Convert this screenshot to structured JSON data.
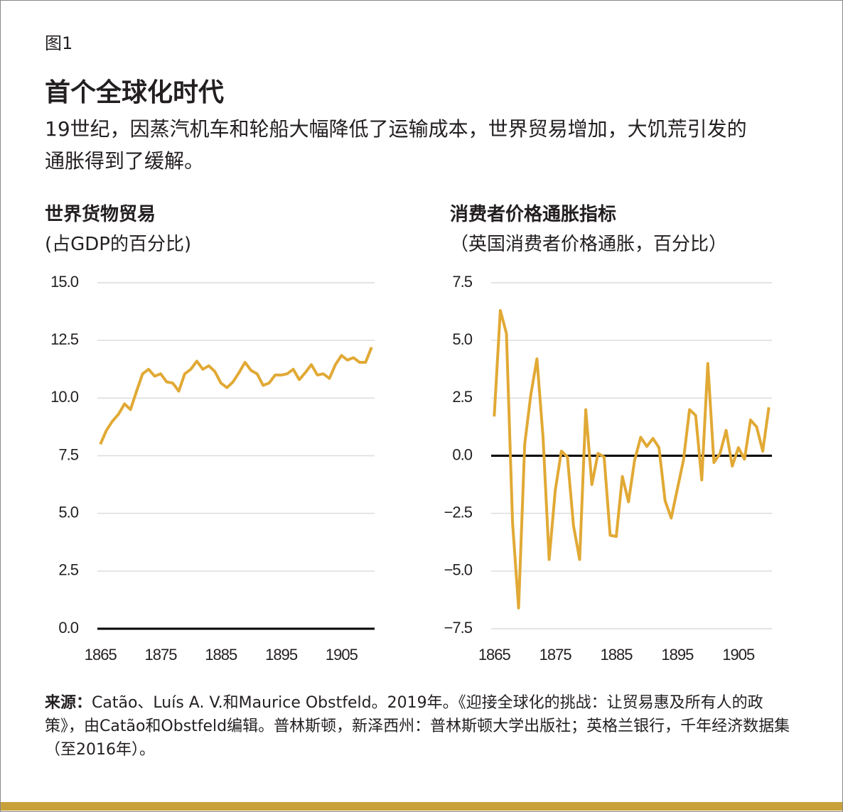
{
  "figure_label": "图1",
  "title": "首个全球化时代",
  "subtitle": "19世纪，因蒸汽机车和轮船大幅降低了运输成本，世界贸易增加，大饥荒引发的通胀得到了缓解。",
  "source_label": "来源：",
  "source": "Catão、Luís A. V.和Maurice Obstfeld。2019年。《迎接全球化的挑战：让贸易惠及所有人的政策》，由Catão和Obstfeld编辑。普林斯顿，新泽西州：普林斯顿大学出版社；英格兰银行，千年经济数据集（至2016年）。",
  "chart_data": [
    {
      "type": "line",
      "title": "世界货物贸易",
      "subtitle": "(占GDP的百分比)",
      "x": [
        1865,
        1866,
        1867,
        1868,
        1869,
        1870,
        1871,
        1872,
        1873,
        1874,
        1875,
        1876,
        1877,
        1878,
        1879,
        1880,
        1881,
        1882,
        1883,
        1884,
        1885,
        1886,
        1887,
        1888,
        1889,
        1890,
        1891,
        1892,
        1893,
        1894,
        1895,
        1896,
        1897,
        1898,
        1899,
        1900,
        1901,
        1902,
        1903,
        1904,
        1905,
        1906,
        1907,
        1908,
        1909,
        1910
      ],
      "values": [
        8.0,
        8.6,
        9.0,
        9.3,
        9.75,
        9.5,
        10.3,
        11.05,
        11.25,
        10.95,
        11.05,
        10.7,
        10.65,
        10.3,
        11.05,
        11.25,
        11.6,
        11.25,
        11.4,
        11.15,
        10.65,
        10.45,
        10.7,
        11.1,
        11.55,
        11.2,
        11.05,
        10.55,
        10.65,
        11.0,
        11.0,
        11.05,
        11.25,
        10.8,
        11.1,
        11.45,
        11.0,
        11.05,
        10.85,
        11.45,
        11.85,
        11.65,
        11.75,
        11.55,
        11.55,
        12.2
      ],
      "color": "#e1a935",
      "xlim": [
        1864.5,
        1910.5
      ],
      "xticks": [
        1865,
        1875,
        1885,
        1895,
        1905
      ],
      "ylim": [
        0,
        15
      ],
      "yticks": [
        {
          "value": 0,
          "label": "0.0"
        },
        {
          "value": 2.5,
          "label": "2.5"
        },
        {
          "value": 5,
          "label": "5.0"
        },
        {
          "value": 7.5,
          "label": "7.5"
        },
        {
          "value": 10,
          "label": "10.0"
        },
        {
          "value": 12.5,
          "label": "12.5"
        },
        {
          "value": 15,
          "label": "15.0"
        }
      ],
      "grid": true,
      "zero_line": true
    },
    {
      "type": "line",
      "title": "消费者价格通胀指标",
      "subtitle": "（英国消费者价格通胀，百分比）",
      "x": [
        1865,
        1866,
        1867,
        1868,
        1869,
        1870,
        1871,
        1872,
        1873,
        1874,
        1875,
        1876,
        1877,
        1878,
        1879,
        1880,
        1881,
        1882,
        1883,
        1884,
        1885,
        1886,
        1887,
        1888,
        1889,
        1890,
        1891,
        1892,
        1893,
        1894,
        1895,
        1896,
        1897,
        1898,
        1899,
        1900,
        1901,
        1902,
        1903,
        1904,
        1905,
        1906,
        1907,
        1908,
        1909,
        1910
      ],
      "values": [
        1.7,
        6.3,
        5.3,
        -2.9,
        -6.6,
        0.5,
        2.65,
        4.2,
        0.8,
        -4.5,
        -1.5,
        0.2,
        -0.05,
        -3.05,
        -4.5,
        2.0,
        -1.25,
        0.1,
        -0.05,
        -3.45,
        -3.5,
        -0.9,
        -2.0,
        -0.2,
        0.8,
        0.4,
        0.75,
        0.35,
        -1.95,
        -2.7,
        -1.45,
        -0.2,
        2.0,
        1.75,
        -1.05,
        4.0,
        -0.3,
        0.1,
        1.1,
        -0.45,
        0.35,
        -0.15,
        1.55,
        1.25,
        0.2,
        2.1
      ],
      "color": "#e1a935",
      "xlim": [
        1864.5,
        1910.5
      ],
      "xticks": [
        1865,
        1875,
        1885,
        1895,
        1905
      ],
      "ylim": [
        -7.5,
        7.5
      ],
      "yticks": [
        {
          "value": -7.5,
          "label": "−7.5"
        },
        {
          "value": -5,
          "label": "−5.0"
        },
        {
          "value": -2.5,
          "label": "−2.5"
        },
        {
          "value": 0,
          "label": "0.0"
        },
        {
          "value": 2.5,
          "label": "2.5"
        },
        {
          "value": 5,
          "label": "5.0"
        },
        {
          "value": 7.5,
          "label": "7.5"
        }
      ],
      "grid": true,
      "zero_line": true
    }
  ]
}
